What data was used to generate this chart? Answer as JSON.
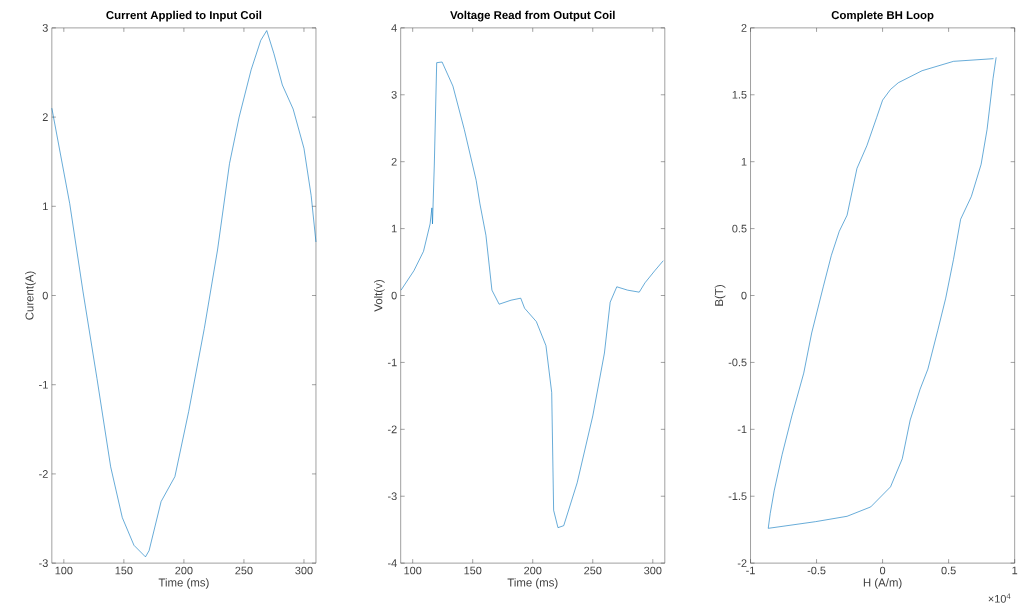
{
  "chart_data": [
    {
      "type": "line",
      "title": "Current Applied to Input Coil",
      "xlabel": "Time (ms)",
      "ylabel": "Curent(A)",
      "color": "#0072bd",
      "x": [
        90,
        104.9,
        116,
        127.6,
        139,
        148.7,
        158.4,
        168,
        171,
        181,
        192.5,
        204,
        217,
        228,
        238,
        246,
        256,
        264,
        269,
        275,
        282,
        291,
        300,
        306,
        310
      ],
      "values": [
        2.1,
        1.03,
        0.04,
        -0.93,
        -1.92,
        -2.49,
        -2.8,
        -2.93,
        -2.86,
        -2.31,
        -2.03,
        -1.3,
        -0.37,
        0.51,
        1.48,
        2.0,
        2.53,
        2.86,
        2.97,
        2.71,
        2.36,
        2.09,
        1.65,
        1.12,
        0.6
      ],
      "xlim": [
        90,
        310
      ],
      "ylim": [
        -3,
        3
      ],
      "xticks": [
        100,
        150,
        200,
        250,
        300
      ],
      "yticks": [
        -3,
        -2,
        -1,
        0,
        1,
        2,
        3
      ]
    },
    {
      "type": "line",
      "title": "Voltage Read from Output Coil",
      "xlabel": "Time (ms)",
      "ylabel": "Volt(v)",
      "color": "#0072bd",
      "x": [
        90.3,
        101,
        109,
        114.5,
        116,
        116.5,
        118,
        120,
        124.5,
        133.5,
        143,
        152.9,
        156,
        161,
        166,
        172,
        181.9,
        190,
        193.2,
        203,
        211,
        215.8,
        217.4,
        221,
        225.8,
        237,
        250,
        259.7,
        264.5,
        270,
        279,
        288.7,
        293.5,
        301.6,
        308.7
      ],
      "values": [
        0.08,
        0.37,
        0.66,
        1.07,
        1.31,
        1.07,
        1.95,
        3.48,
        3.49,
        3.13,
        2.48,
        1.72,
        1.37,
        0.9,
        0.08,
        -0.13,
        -0.07,
        -0.04,
        -0.19,
        -0.39,
        -0.75,
        -1.45,
        -3.21,
        -3.47,
        -3.44,
        -2.8,
        -1.8,
        -0.86,
        -0.1,
        0.13,
        0.08,
        0.05,
        0.19,
        0.37,
        0.52
      ],
      "xlim": [
        90,
        310
      ],
      "ylim": [
        -4,
        4
      ],
      "xticks": [
        100,
        150,
        200,
        250,
        300
      ],
      "yticks": [
        -4,
        -3,
        -2,
        -1,
        0,
        1,
        2,
        3,
        4
      ]
    },
    {
      "type": "line",
      "title": "Complete BH Loop",
      "xlabel": "H (A/m)",
      "ylabel": "B(T)",
      "annotations": [
        "×10$^{4}$"
      ],
      "series": [
        {
          "color": "#0072bd",
          "x": [
            0.86,
            0.836,
            0.821,
            0.791,
            0.746,
            0.672,
            0.591,
            0.537,
            0.478,
            0.418,
            0.343,
            0.284,
            0.209,
            0.149,
            0.06,
            -0.09,
            -0.269,
            -0.507,
            -0.866,
            -0.851,
            -0.821,
            -0.761,
            -0.687,
            -0.597,
            -0.537,
            -0.448,
            -0.388,
            -0.328,
            -0.269,
            -0.194,
            -0.119,
            -0.045,
            0,
            0.06,
            0.119,
            0.299,
            0.537,
            0.84
          ],
          "values": [
            1.78,
            1.62,
            1.49,
            1.24,
            0.98,
            0.74,
            0.57,
            0.27,
            -0.02,
            -0.26,
            -0.55,
            -0.7,
            -0.93,
            -1.22,
            -1.43,
            -1.58,
            -1.65,
            -1.69,
            -1.74,
            -1.63,
            -1.46,
            -1.19,
            -0.9,
            -0.58,
            -0.28,
            0.07,
            0.3,
            0.48,
            0.6,
            0.95,
            1.12,
            1.33,
            1.46,
            1.54,
            1.59,
            1.68,
            1.75,
            1.77
          ]
        }
      ],
      "xlim": [
        -1,
        1
      ],
      "ylim": [
        -2,
        2
      ],
      "xticks": [
        -1,
        -0.5,
        0,
        0.5,
        1
      ],
      "yticks": [
        -2,
        -1.5,
        -1,
        -0.5,
        0,
        0.5,
        1,
        1.5,
        2
      ]
    }
  ]
}
